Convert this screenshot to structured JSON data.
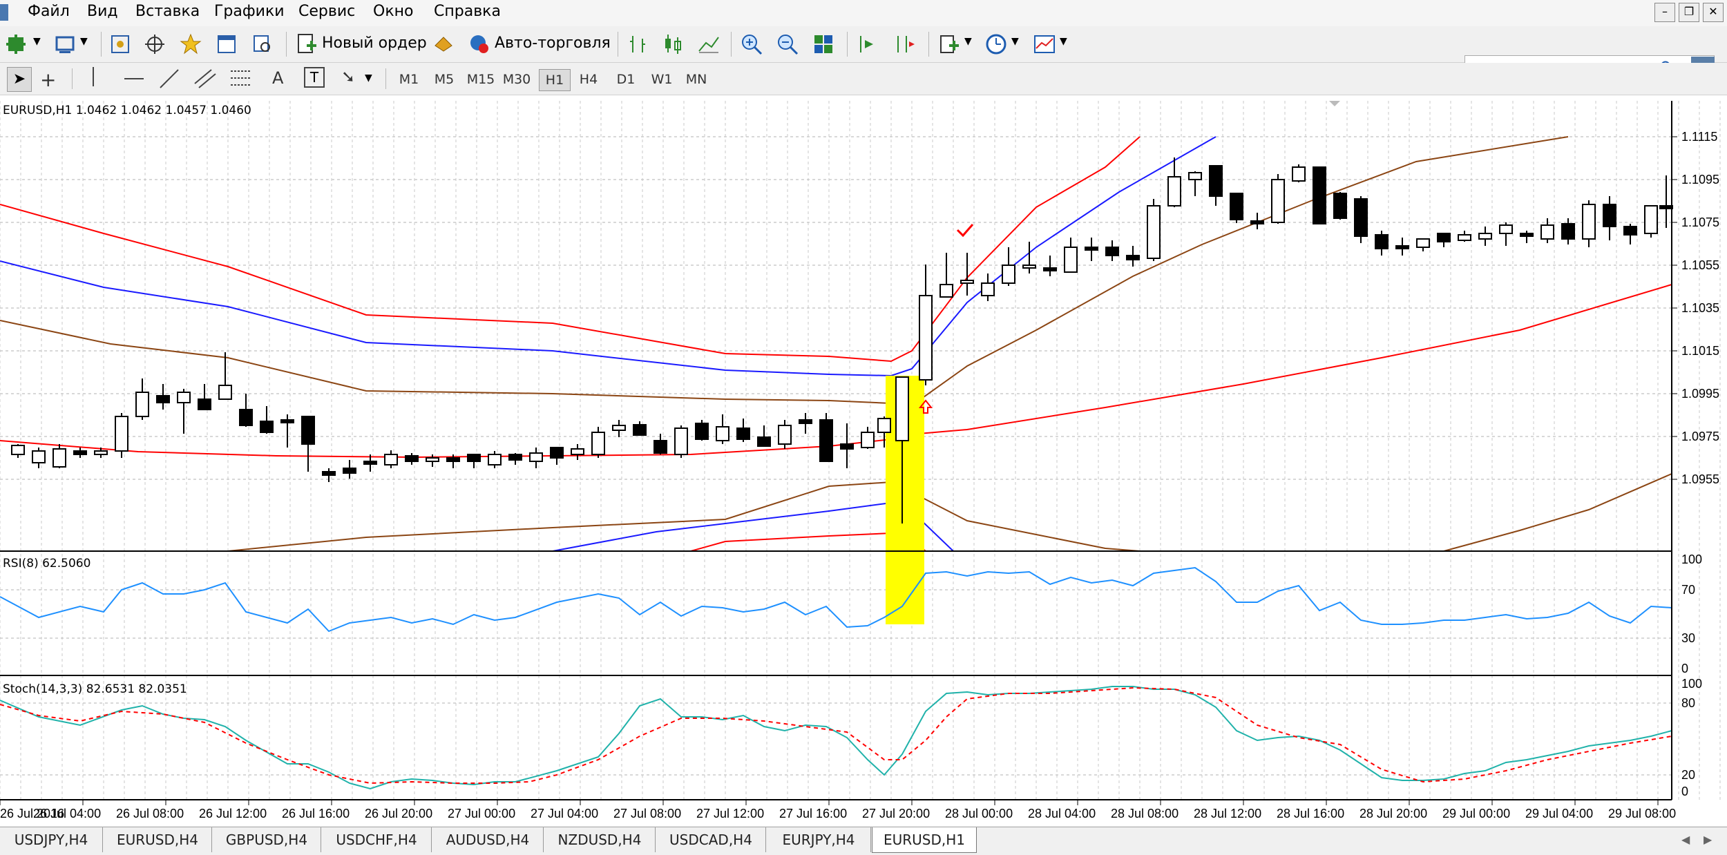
{
  "menu": {
    "items": [
      "Файл",
      "Вид",
      "Вставка",
      "Графики",
      "Сервис",
      "Окно",
      "Справка"
    ]
  },
  "toolbar": {
    "new_order_label": "Новый ордер",
    "autotrade_label": "Авто-торговля",
    "timeframes": [
      "M1",
      "M5",
      "M15",
      "M30",
      "H1",
      "H4",
      "D1",
      "W1",
      "MN"
    ],
    "active_timeframe": "H1"
  },
  "chart": {
    "header": "EURUSD,H1  1.0462 1.0462 1.0457 1.0460",
    "rsi_label": "RSI(8) 62.5060",
    "stoch_label": "Stoch(14,3,3) 82.6531 82.0351",
    "price_ticks": [
      "1.1115",
      "1.1095",
      "1.1075",
      "1.1055",
      "1.1035",
      "1.1015",
      "1.0995",
      "1.0975",
      "1.0955"
    ],
    "rsi_ticks": [
      "100",
      "70",
      "30",
      "0"
    ],
    "stoch_ticks": [
      "100",
      "80",
      "20",
      "0"
    ],
    "time_labels": [
      "26 Jul 2016",
      "26 Jul 04:00",
      "26 Jul 08:00",
      "26 Jul 12:00",
      "26 Jul 16:00",
      "26 Jul 20:00",
      "27 Jul 00:00",
      "27 Jul 04:00",
      "27 Jul 08:00",
      "27 Jul 12:00",
      "27 Jul 16:00",
      "27 Jul 20:00",
      "28 Jul 00:00",
      "28 Jul 04:00",
      "28 Jul 08:00",
      "28 Jul 12:00",
      "28 Jul 16:00",
      "28 Jul 20:00",
      "29 Jul 00:00",
      "29 Jul 04:00",
      "29 Jul 08:00"
    ],
    "colors": {
      "red": "#ff0000",
      "blue": "#1a1aff",
      "brown": "#8b4513",
      "rsi": "#1e90ff",
      "stoch_main": "#20b2aa",
      "highlight": "#ffff00"
    }
  },
  "tabs": [
    "USDJPY,H4",
    "EURUSD,H4",
    "GBPUSD,H4",
    "USDCHF,H4",
    "AUDUSD,H4",
    "NZDUSD,H4",
    "USDCAD,H4",
    "EURJPY,H4",
    "EURUSD,H1"
  ],
  "active_tab": "EURUSD,H1"
}
